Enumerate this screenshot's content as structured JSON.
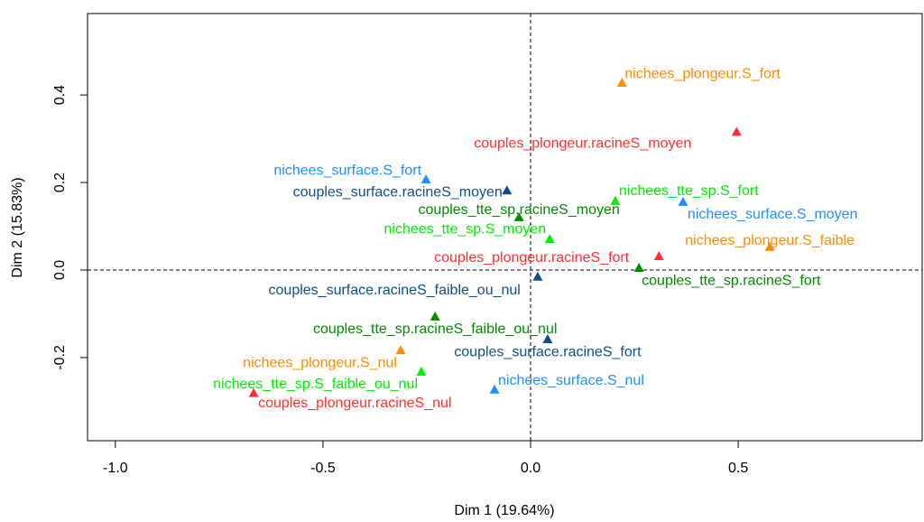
{
  "chart_data": {
    "type": "scatter",
    "xlabel": "Dim 1 (19.64%)",
    "ylabel": "Dim 2 (15.83%)",
    "xlim": [
      -1.067,
      0.943
    ],
    "ylim": [
      -0.39,
      0.586
    ],
    "xticks": [
      {
        "value": -1.0,
        "label": "-1.0"
      },
      {
        "value": -0.5,
        "label": "-0.5"
      },
      {
        "value": 0.0,
        "label": "0.0"
      },
      {
        "value": 0.5,
        "label": "0.5"
      }
    ],
    "yticks": [
      {
        "value": -0.2,
        "label": "-0.2"
      },
      {
        "value": 0.0,
        "label": "0.0"
      },
      {
        "value": 0.2,
        "label": "0.2"
      },
      {
        "value": 0.4,
        "label": "0.4"
      }
    ],
    "ref_lines": {
      "x": 0,
      "y": 0
    },
    "labels": [
      "nichees_plongeur.S_fort",
      "couples_plongeur.racineS_moyen",
      "nichees_surface.S_fort",
      "couples_surface.racineS_moyen",
      "nichees_tte_sp.S_fort",
      "couples_tte_sp.racineS_moyen",
      "nichees_surface.S_moyen",
      "nichees_tte_sp.S_moyen",
      "nichees_plongeur.S_faible",
      "couples_plongeur.racineS_fort",
      "couples_tte_sp.racineS_fort",
      "couples_surface.racineS_faible_ou_nul",
      "couples_tte_sp.racineS_faible_ou_nul",
      "couples_surface.racineS_fort",
      "nichees_plongeur.S_nul",
      "nichees_tte_sp.S_faible_ou_nul",
      "nichees_surface.S_nul",
      "couples_plongeur.racineS_nul"
    ],
    "x": [
      0.22,
      0.496,
      -0.252,
      -0.057,
      0.204,
      -0.028,
      0.367,
      0.046,
      0.576,
      0.309,
      0.261,
      0.017,
      -0.23,
      0.041,
      -0.313,
      -0.263,
      -0.087,
      -0.667
    ],
    "y": [
      0.427,
      0.315,
      0.206,
      0.181,
      0.157,
      0.12,
      0.155,
      0.07,
      0.052,
      0.031,
      0.004,
      -0.016,
      -0.107,
      -0.159,
      -0.184,
      -0.233,
      -0.274,
      -0.282
    ],
    "colors": [
      "#ff8c00",
      "#ff3030",
      "#1e90ff",
      "#104e8b",
      "#00ee00",
      "#008b00",
      "#1e90ff",
      "#00ee00",
      "#ff8c00",
      "#ff3030",
      "#008b00",
      "#104e8b",
      "#008b00",
      "#104e8b",
      "#ff8c00",
      "#00ee00",
      "#1e90ff",
      "#ff3030"
    ]
  }
}
